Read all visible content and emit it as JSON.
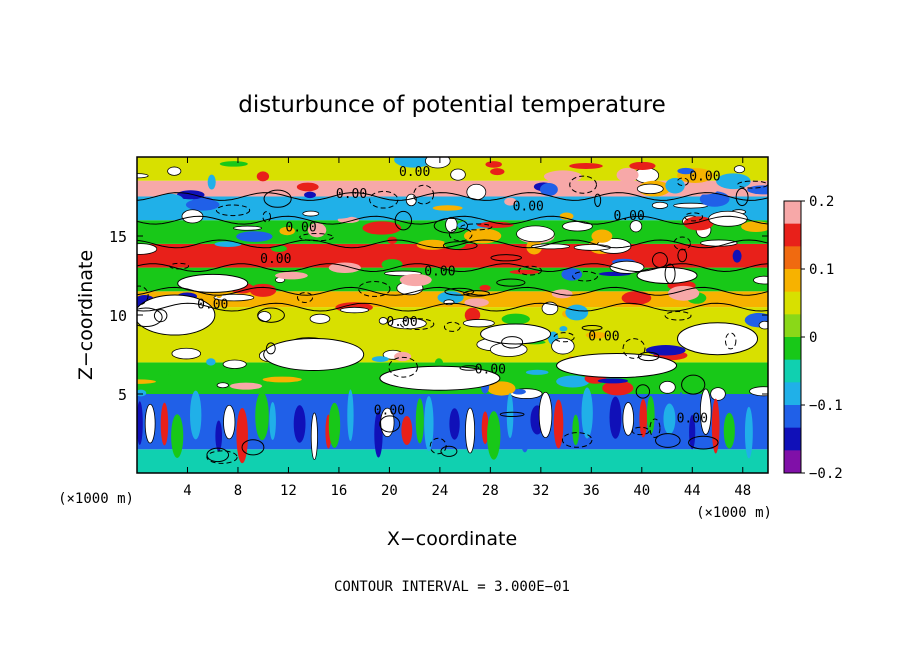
{
  "chart_data": {
    "type": "heatmap",
    "title": "disturbunce of potential temperature",
    "xlabel": "X−coordinate",
    "ylabel": "Z−coordinate",
    "x_unit_left": "(×1000 m)",
    "x_unit_right": "(×1000 m)",
    "xlim": [
      0,
      50
    ],
    "ylim": [
      0,
      20
    ],
    "x_ticks": [
      4,
      8,
      12,
      16,
      20,
      24,
      28,
      32,
      36,
      40,
      44,
      48
    ],
    "y_ticks": [
      5,
      10,
      15
    ],
    "colorbar": {
      "min": -0.2,
      "max": 0.2,
      "tick_values": [
        0.2,
        0.1,
        0,
        -0.1,
        -0.2
      ],
      "tick_labels": [
        "0.2",
        "0.1",
        "0",
        "−0.1",
        "−0.2"
      ],
      "colors": [
        "#f7a8a8",
        "#e8201a",
        "#f06a10",
        "#f7b200",
        "#d8e000",
        "#8ad818",
        "#18c818",
        "#10d0b0",
        "#20b0e8",
        "#2060e8",
        "#1010b8",
        "#8010a8"
      ]
    },
    "contour_interval": "CONTOUR INTERVAL = 3.000E−01",
    "contour_labels": [
      "0.00",
      "0.00",
      "0.00",
      "0.00",
      "0.00",
      "0.00",
      "0.00",
      "0.00",
      "0.00",
      "0.00",
      "0.00",
      "0.00",
      "0.00",
      "0.00"
    ],
    "bands": [
      {
        "z0": 0.0,
        "z1": 1.5,
        "value": -0.05
      },
      {
        "z0": 1.5,
        "z1": 5.0,
        "value": -0.1
      },
      {
        "z0": 5.0,
        "z1": 7.0,
        "value": 0.0
      },
      {
        "z0": 7.0,
        "z1": 10.5,
        "value": 0.05
      },
      {
        "z0": 10.5,
        "z1": 11.5,
        "value": 0.1
      },
      {
        "z0": 11.5,
        "z1": 13.0,
        "value": 0.0
      },
      {
        "z0": 13.0,
        "z1": 14.5,
        "value": 0.15
      },
      {
        "z0": 14.5,
        "z1": 16.0,
        "value": 0.0
      },
      {
        "z0": 16.0,
        "z1": 17.5,
        "value": -0.08
      },
      {
        "z0": 17.5,
        "z1": 18.5,
        "value": 0.18
      },
      {
        "z0": 18.5,
        "z1": 20.0,
        "value": 0.05
      }
    ]
  }
}
